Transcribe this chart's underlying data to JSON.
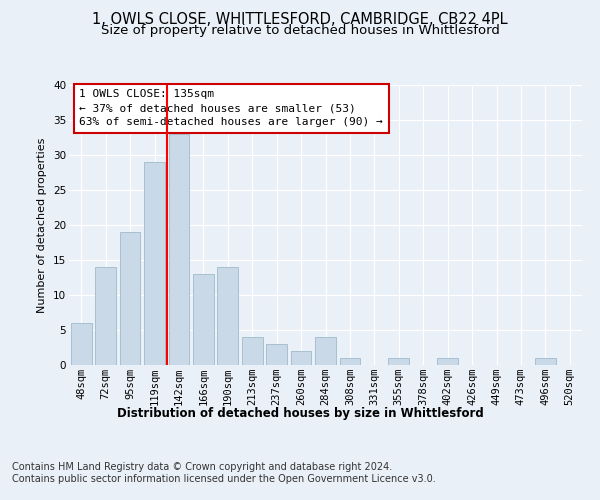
{
  "title1": "1, OWLS CLOSE, WHITTLESFORD, CAMBRIDGE, CB22 4PL",
  "title2": "Size of property relative to detached houses in Whittlesford",
  "xlabel": "Distribution of detached houses by size in Whittlesford",
  "ylabel": "Number of detached properties",
  "categories": [
    "48sqm",
    "72sqm",
    "95sqm",
    "119sqm",
    "142sqm",
    "166sqm",
    "190sqm",
    "213sqm",
    "237sqm",
    "260sqm",
    "284sqm",
    "308sqm",
    "331sqm",
    "355sqm",
    "378sqm",
    "402sqm",
    "426sqm",
    "449sqm",
    "473sqm",
    "496sqm",
    "520sqm"
  ],
  "values": [
    6,
    14,
    19,
    29,
    33,
    13,
    14,
    4,
    3,
    2,
    4,
    1,
    0,
    1,
    0,
    1,
    0,
    0,
    0,
    1,
    0
  ],
  "bar_color": "#c9d9e8",
  "bar_edge_color": "#a8bfd0",
  "annotation_text": "1 OWLS CLOSE: 135sqm\n← 37% of detached houses are smaller (53)\n63% of semi-detached houses are larger (90) →",
  "annotation_box_color": "#ffffff",
  "annotation_box_edge_color": "#cc0000",
  "ylim": [
    0,
    40
  ],
  "yticks": [
    0,
    5,
    10,
    15,
    20,
    25,
    30,
    35,
    40
  ],
  "footnote1": "Contains HM Land Registry data © Crown copyright and database right 2024.",
  "footnote2": "Contains public sector information licensed under the Open Government Licence v3.0.",
  "bg_color": "#eaf0f8",
  "plot_bg_color": "#eaf0f8",
  "title1_fontsize": 10.5,
  "title2_fontsize": 9.5,
  "axis_label_fontsize": 8.5,
  "ylabel_fontsize": 8,
  "tick_fontsize": 7.5,
  "annotation_fontsize": 8,
  "footnote_fontsize": 7
}
